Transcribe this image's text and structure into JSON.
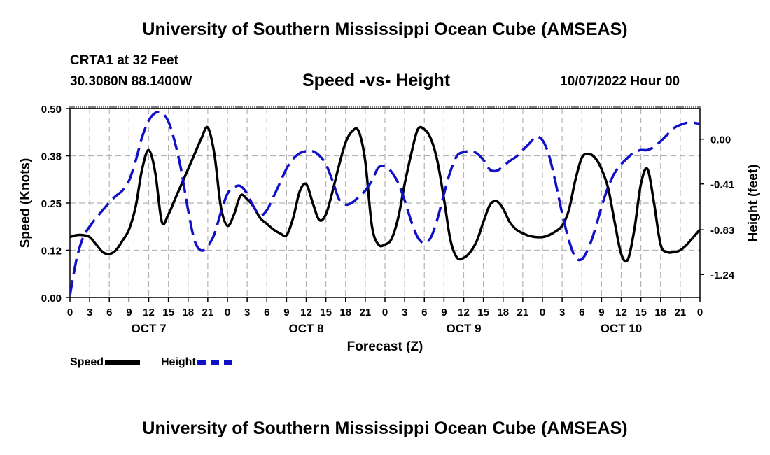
{
  "header": {
    "title": "University of Southern Mississippi Ocean Cube (AMSEAS)",
    "station": "CRTA1 at 32 Feet",
    "coords": "30.3080N  88.1400W",
    "subtitle": "Speed -vs- Height",
    "datetime": "10/07/2022 Hour 00"
  },
  "footer": {
    "title": "University of Southern Mississippi Ocean Cube (AMSEAS)"
  },
  "legend": {
    "speed": "Speed",
    "height": "Height"
  },
  "colors": {
    "speed": "#000000",
    "height": "#1010c8",
    "grid": "#b4b4b4"
  },
  "chart_data": {
    "type": "line",
    "xlabel": "Forecast (Z)",
    "ylabel_left": "Speed (Knots)",
    "ylabel_right": "Height (feet)",
    "x_range_hours": [
      0,
      96
    ],
    "ylim_left": [
      0,
      0.5
    ],
    "ylim_right": [
      -1.45,
      0.28
    ],
    "left_ticks": [
      "0.00",
      "0.12",
      "0.25",
      "0.38",
      "0.50"
    ],
    "left_tick_values": [
      0,
      0.125,
      0.25,
      0.375,
      0.5
    ],
    "right_ticks": [
      "0.00",
      "-0.41",
      "-0.83",
      "-1.24"
    ],
    "right_tick_values": [
      0,
      -0.41,
      -0.83,
      -1.24
    ],
    "x_tick_labels": [
      "0",
      "3",
      "6",
      "9",
      "12",
      "15",
      "18",
      "21",
      "0",
      "3",
      "6",
      "9",
      "12",
      "15",
      "18",
      "21",
      "0",
      "3",
      "6",
      "9",
      "12",
      "15",
      "18",
      "21",
      "0",
      "3",
      "6",
      "9",
      "12",
      "15",
      "18",
      "21",
      "0"
    ],
    "day_labels": [
      {
        "label": "OCT 7",
        "hour": 12
      },
      {
        "label": "OCT 8",
        "hour": 36
      },
      {
        "label": "OCT 9",
        "hour": 60
      },
      {
        "label": "OCT 10",
        "hour": 84
      }
    ],
    "series": [
      {
        "name": "Speed",
        "axis": "left",
        "style": "solid",
        "x": [
          0,
          1,
          2,
          3,
          4,
          5,
          6,
          7,
          8,
          9,
          10,
          11,
          12,
          13,
          14,
          15,
          16,
          17,
          18,
          19,
          20,
          21,
          22,
          23,
          24,
          25,
          26,
          27,
          28,
          29,
          30,
          31,
          32,
          33,
          34,
          35,
          36,
          37,
          38,
          39,
          40,
          41,
          42,
          43,
          44,
          45,
          46,
          47,
          48,
          49,
          50,
          51,
          52,
          53,
          54,
          55,
          56,
          57,
          58,
          59,
          60,
          61,
          62,
          63,
          64,
          65,
          66,
          67,
          68,
          69,
          70,
          71,
          72,
          73,
          74,
          75,
          76,
          77,
          78,
          79,
          80,
          81,
          82,
          83,
          84,
          85,
          86,
          87,
          88,
          89,
          90,
          91,
          92,
          93,
          94,
          95,
          96
        ],
        "values": [
          0.16,
          0.165,
          0.165,
          0.16,
          0.14,
          0.12,
          0.115,
          0.125,
          0.15,
          0.18,
          0.24,
          0.34,
          0.39,
          0.33,
          0.2,
          0.22,
          0.26,
          0.3,
          0.34,
          0.38,
          0.42,
          0.45,
          0.38,
          0.24,
          0.19,
          0.22,
          0.27,
          0.26,
          0.24,
          0.21,
          0.195,
          0.18,
          0.17,
          0.165,
          0.21,
          0.28,
          0.3,
          0.25,
          0.205,
          0.22,
          0.28,
          0.35,
          0.41,
          0.44,
          0.44,
          0.36,
          0.19,
          0.14,
          0.14,
          0.155,
          0.21,
          0.3,
          0.38,
          0.445,
          0.445,
          0.42,
          0.36,
          0.26,
          0.15,
          0.105,
          0.105,
          0.12,
          0.15,
          0.2,
          0.245,
          0.255,
          0.235,
          0.2,
          0.18,
          0.17,
          0.163,
          0.16,
          0.16,
          0.165,
          0.175,
          0.19,
          0.23,
          0.31,
          0.37,
          0.38,
          0.37,
          0.34,
          0.29,
          0.2,
          0.115,
          0.1,
          0.18,
          0.3,
          0.34,
          0.25,
          0.14,
          0.12,
          0.12,
          0.125,
          0.14,
          0.16,
          0.18
        ]
      },
      {
        "name": "Height",
        "axis": "right",
        "style": "dashed",
        "x": [
          0,
          1,
          2,
          3,
          4,
          5,
          6,
          7,
          8,
          9,
          10,
          11,
          12,
          13,
          14,
          15,
          16,
          17,
          18,
          19,
          20,
          21,
          22,
          23,
          24,
          25,
          26,
          27,
          28,
          29,
          30,
          31,
          32,
          33,
          34,
          35,
          36,
          37,
          38,
          39,
          40,
          41,
          42,
          43,
          44,
          45,
          46,
          47,
          48,
          49,
          50,
          51,
          52,
          53,
          54,
          55,
          56,
          57,
          58,
          59,
          60,
          61,
          62,
          63,
          64,
          65,
          66,
          67,
          68,
          69,
          70,
          71,
          72,
          73,
          74,
          75,
          76,
          77,
          78,
          79,
          80,
          81,
          82,
          83,
          84,
          85,
          86,
          87,
          88,
          89,
          90,
          91,
          92,
          93,
          94,
          95,
          96
        ],
        "values": [
          -1.43,
          -1.1,
          -0.9,
          -0.8,
          -0.72,
          -0.65,
          -0.58,
          -0.52,
          -0.47,
          -0.38,
          -0.2,
          0.02,
          0.17,
          0.24,
          0.24,
          0.16,
          -0.03,
          -0.3,
          -0.65,
          -0.93,
          -1.02,
          -0.98,
          -0.87,
          -0.67,
          -0.5,
          -0.44,
          -0.43,
          -0.5,
          -0.62,
          -0.7,
          -0.65,
          -0.53,
          -0.4,
          -0.27,
          -0.18,
          -0.13,
          -0.11,
          -0.11,
          -0.15,
          -0.23,
          -0.38,
          -0.55,
          -0.6,
          -0.58,
          -0.53,
          -0.47,
          -0.38,
          -0.26,
          -0.25,
          -0.3,
          -0.4,
          -0.56,
          -0.75,
          -0.9,
          -0.95,
          -0.9,
          -0.73,
          -0.5,
          -0.29,
          -0.15,
          -0.12,
          -0.11,
          -0.13,
          -0.19,
          -0.28,
          -0.29,
          -0.25,
          -0.2,
          -0.16,
          -0.1,
          -0.04,
          0.02,
          -0.01,
          -0.15,
          -0.4,
          -0.68,
          -0.92,
          -1.08,
          -1.1,
          -1.0,
          -0.83,
          -0.62,
          -0.44,
          -0.31,
          -0.23,
          -0.17,
          -0.12,
          -0.1,
          -0.1,
          -0.07,
          -0.02,
          0.04,
          0.1,
          0.13,
          0.15,
          0.15,
          0.14
        ]
      }
    ]
  }
}
